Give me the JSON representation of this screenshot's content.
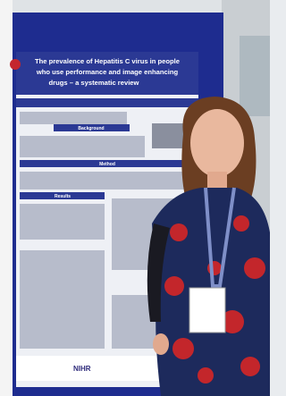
{
  "poster": {
    "title_lines": [
      "The prevalence of Hepatitis C virus in people",
      "who use performance and image enhancing",
      "drugs – a systematic review"
    ],
    "sections": [
      "Background",
      "Method",
      "Results"
    ],
    "logo": "NIHR"
  }
}
